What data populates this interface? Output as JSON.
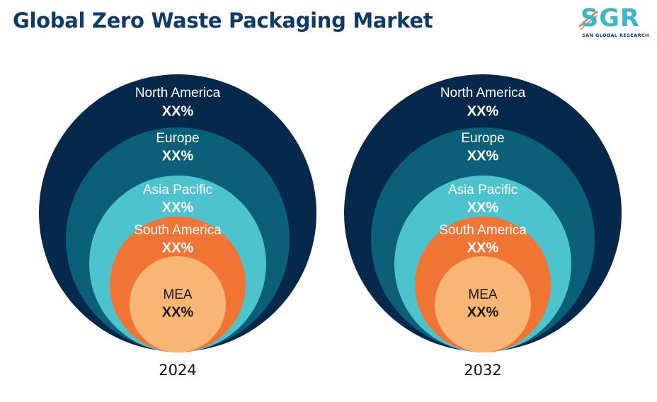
{
  "title": "Global Zero Waste Packaging Market",
  "logo": {
    "letters": "SGR",
    "tagline": "SAN GLOBAL RESEARCH"
  },
  "chart_data": {
    "type": "nested-circles",
    "title": "Global Zero Waste Packaging Market",
    "categories": [
      "North America",
      "Europe",
      "Asia Pacific",
      "South America",
      "MEA"
    ],
    "colors": [
      "#05284b",
      "#0b5f78",
      "#4cc3cd",
      "#f07535",
      "#f8b573"
    ],
    "text_colors": [
      "#ffffff",
      "#ffffff",
      "#ffffff",
      "#ffffff",
      "#1a1a1a"
    ],
    "panels": [
      {
        "year": "2024",
        "values": [
          "XX%",
          "XX%",
          "XX%",
          "XX%",
          "XX%"
        ]
      },
      {
        "year": "2032",
        "values": [
          "XX%",
          "XX%",
          "XX%",
          "XX%",
          "XX%"
        ]
      }
    ]
  }
}
